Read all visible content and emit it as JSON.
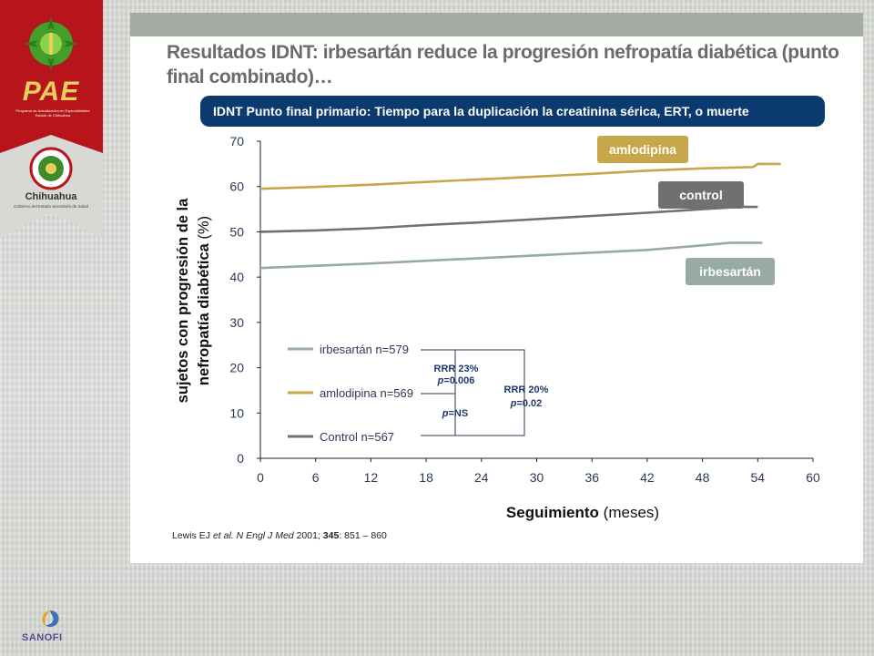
{
  "slide": {
    "title": "Resultados IDNT: irbesartán reduce la progresión nefropatía diabética (punto final combinado)…",
    "banner": "IDNT Punto final primario: Tiempo para la duplicación la creatinina sérica, ERT, o muerte",
    "citation_prefix": "Lewis EJ ",
    "citation_etal": "et al.",
    "citation_journal": " N Engl J Med",
    "citation_year": " 2001; ",
    "citation_volume": "345",
    "citation_pages": ": 851 – 860"
  },
  "branding": {
    "logo_top_text": "PAE",
    "logo_top_subtext": "Programa de Actualización en Especialidades Estado de Chihuahua",
    "logo_state_text": "Chihuahua",
    "logo_state_subtext": "Gobierno del Estado Secretaría de Salud",
    "sponsor_text": "SANOFI"
  },
  "chart_data": {
    "type": "line",
    "ylabel_main": "sujetos con progresión de la",
    "ylabel_sub": "nefropatía  diabética",
    "ylabel_unit": "(%)",
    "xlabel": "Seguimiento",
    "xlabel_unit": "(meses)",
    "x_ticks": [
      "0",
      "6",
      "12",
      "18",
      "24",
      "30",
      "36",
      "42",
      "48",
      "54",
      "60"
    ],
    "y_ticks": [
      "0",
      "10",
      "20",
      "30",
      "40",
      "50",
      "60",
      "70"
    ],
    "xlim": [
      0,
      60
    ],
    "ylim": [
      0,
      70
    ],
    "grid": false,
    "series": [
      {
        "name": "amlodipina",
        "legend_label": "amlodipina n=569",
        "color": "#c8a64a",
        "x": [
          0,
          6,
          12,
          18,
          24,
          30,
          36,
          42,
          48,
          53.5,
          54,
          56.5
        ],
        "y": [
          59.5,
          59.9,
          60.4,
          61,
          61.6,
          62.2,
          62.8,
          63.5,
          64,
          64.3,
          65,
          65
        ]
      },
      {
        "name": "control",
        "legend_label": "Control n=567",
        "color": "#707070",
        "x": [
          0,
          6,
          12,
          18,
          24,
          30,
          36,
          42,
          48,
          52,
          54
        ],
        "y": [
          50,
          50.3,
          50.8,
          51.5,
          52.1,
          52.8,
          53.5,
          54.2,
          55,
          55.5,
          55.5
        ]
      },
      {
        "name": "irbesartán",
        "legend_label": "irbesartán n=579",
        "color": "#97aba3",
        "x": [
          0,
          6,
          12,
          18,
          24,
          30,
          36,
          42,
          48,
          51,
          54.5
        ],
        "y": [
          42,
          42.5,
          43,
          43.6,
          44.2,
          44.8,
          45.4,
          46,
          47,
          47.6,
          47.6
        ]
      }
    ],
    "comparisons": [
      {
        "label_rrr": "RRR 23%",
        "label_p": "p=0.006",
        "pair": "irbesartán vs amlodipina"
      },
      {
        "label_p": "p=NS",
        "pair": "amlodipina vs Control"
      },
      {
        "label_rrr": "RRR 20%",
        "label_p": "p=0.02",
        "pair": "irbesartán vs Control"
      }
    ]
  }
}
